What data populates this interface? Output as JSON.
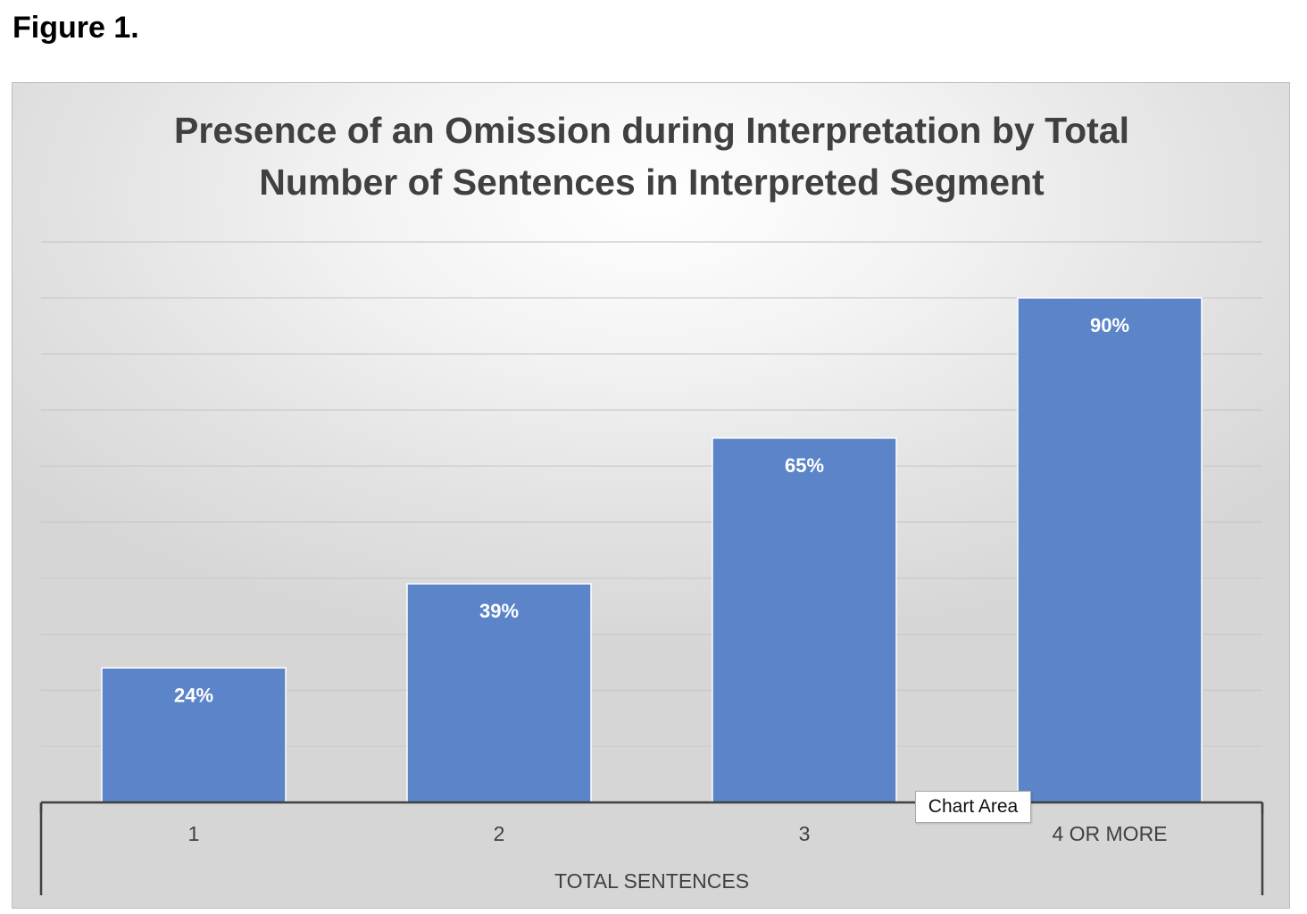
{
  "figure_label": "Figure 1.",
  "tooltip": "Chart Area",
  "colors": {
    "bar": "#5b84c9",
    "gridline": "#c8c8c8",
    "axis": "#404040",
    "title": "#404040",
    "data_label": "#ffffff",
    "tick_label": "#404040"
  },
  "chart_data": {
    "type": "bar",
    "title": "Presence of an Omission during Interpretation by Total Number of Sentences in Interpreted Segment",
    "title_lines": [
      "Presence of an Omission during Interpretation by Total",
      "Number of Sentences in Interpreted Segment"
    ],
    "categories": [
      "1",
      "2",
      "3",
      "4 OR MORE"
    ],
    "values": [
      24,
      39,
      65,
      90
    ],
    "data_labels": [
      "24%",
      "39%",
      "65%",
      "90%"
    ],
    "xlabel": "TOTAL SENTENCES",
    "ylabel": "",
    "ylim": [
      0,
      100
    ],
    "y_unit": "%",
    "grid": true,
    "gridline_step": 10,
    "legend": "none"
  }
}
